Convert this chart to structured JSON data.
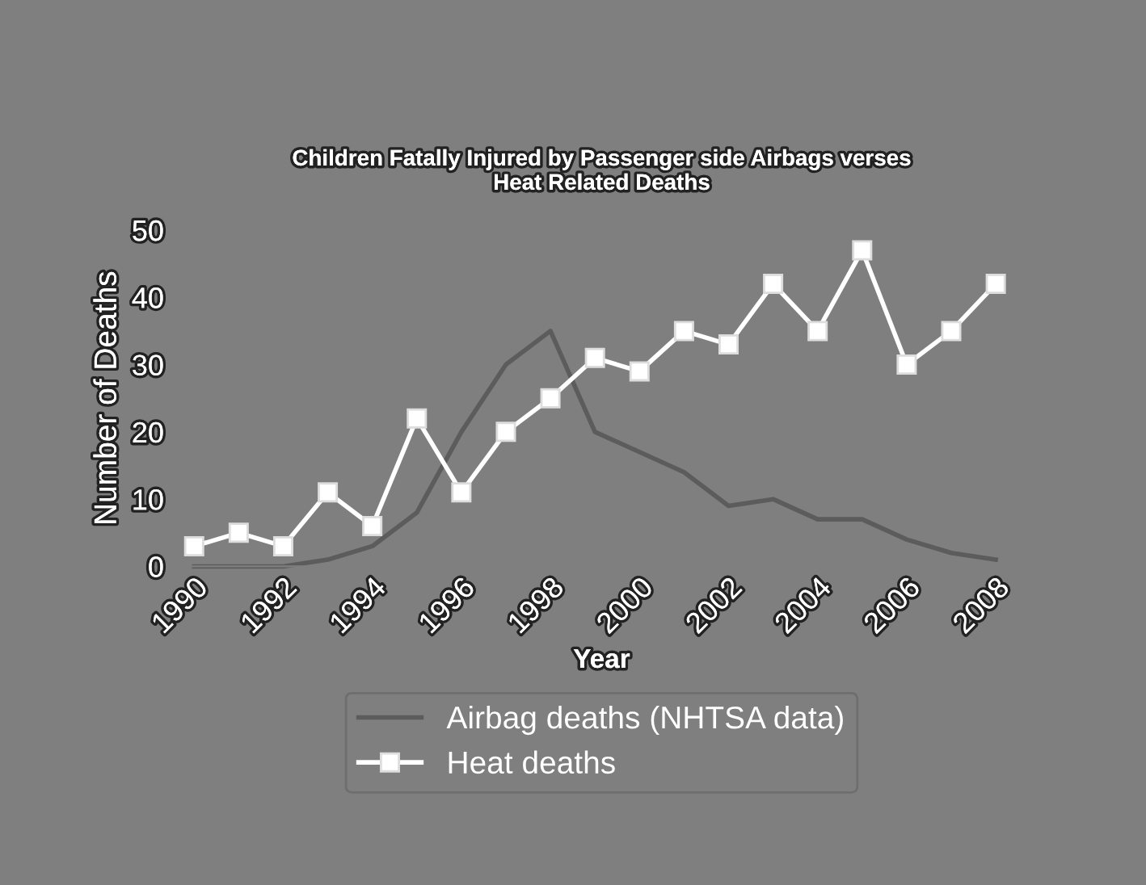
{
  "chart_data": {
    "type": "line",
    "title": "Children Fatally Injured by Passenger side Airbags verses\nHeat Related Deaths",
    "xlabel": "Year",
    "ylabel": "Number of Deaths",
    "x": [
      1990,
      1991,
      1992,
      1993,
      1994,
      1995,
      1996,
      1997,
      1998,
      1999,
      2000,
      2001,
      2002,
      2003,
      2004,
      2005,
      2006,
      2007,
      2008
    ],
    "series": [
      {
        "name": "Airbag deaths (NHTSA data)",
        "color": "#5c5c5c",
        "marker": "none",
        "values": [
          0,
          0,
          0,
          1,
          3,
          8,
          20,
          30,
          35,
          20,
          17,
          14,
          9,
          10,
          7,
          7,
          4,
          2,
          1
        ]
      },
      {
        "name": "Heat deaths",
        "color": "#ffffff",
        "marker": "square",
        "values": [
          3,
          5,
          3,
          11,
          6,
          22,
          11,
          20,
          25,
          31,
          29,
          35,
          33,
          42,
          35,
          47,
          30,
          35,
          42
        ]
      }
    ],
    "xlim": [
      1989.5,
      2008.8
    ],
    "xticks": [
      1990,
      1992,
      1994,
      1996,
      1998,
      2000,
      2002,
      2004,
      2006,
      2008
    ],
    "ylim": [
      0,
      50
    ],
    "yticks": [
      0,
      10,
      20,
      30,
      40,
      50
    ],
    "grid": false,
    "legend": "bottom",
    "line_style": "solid"
  }
}
